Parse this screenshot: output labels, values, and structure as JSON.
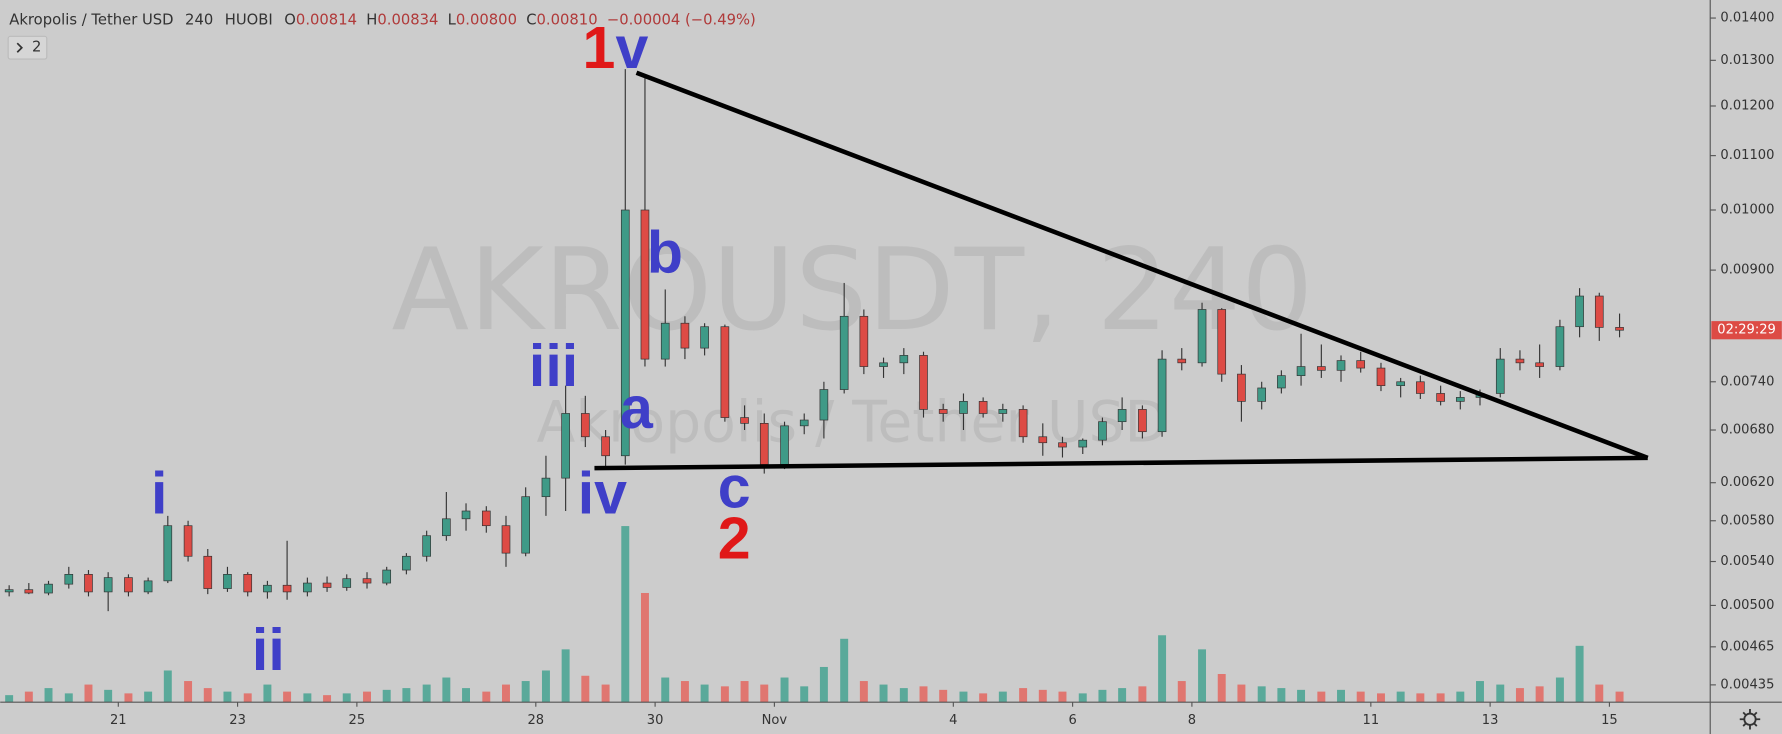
{
  "header": {
    "title": "Akropolis / Tether USD",
    "interval": "240",
    "exchange": "HUOBI",
    "ohlc": [
      {
        "label": "O",
        "value": "0.00814"
      },
      {
        "label": "H",
        "value": "0.00834"
      },
      {
        "label": "L",
        "value": "0.00800"
      },
      {
        "label": "C",
        "value": "0.00810"
      }
    ],
    "change": "−0.00004 (−0.49%)",
    "indicators": "2"
  },
  "watermark": {
    "symbol": "AKROUSDT, 240",
    "name": "Akropolis / Tether USD"
  },
  "countdown": "02:29:29",
  "annotations": [
    "1",
    "v",
    "b",
    "iii",
    "a",
    "iv",
    "c",
    "2",
    "i",
    "ii"
  ],
  "chart_data": {
    "type": "candlestick",
    "y_scale": "log",
    "grid": false,
    "up_color": "#3f9a87",
    "down_color": "#dd4b45",
    "up_volume_color": "#5aa99a",
    "down_volume_color": "#e07670",
    "xlim": [
      19.02,
      47.69
    ],
    "ylim": [
      0.00422,
      0.01445
    ],
    "xticks": [
      21,
      23,
      25,
      28,
      30,
      {
        "value": 32,
        "label": "Nov"
      },
      {
        "value": 35,
        "label": "4"
      },
      {
        "value": 37,
        "label": "6"
      },
      {
        "value": 39,
        "label": "8"
      },
      {
        "value": 42,
        "label": "11"
      },
      {
        "value": 44,
        "label": "13"
      },
      {
        "value": 46,
        "label": "15"
      }
    ],
    "yticks": [
      {
        "value": 0.014,
        "label": "0.01400"
      },
      {
        "value": 0.013,
        "label": "0.01300"
      },
      {
        "value": 0.012,
        "label": "0.01200"
      },
      {
        "value": 0.011,
        "label": "0.01100"
      },
      {
        "value": 0.01,
        "label": "0.01000"
      },
      {
        "value": 0.009,
        "label": "0.00900"
      },
      {
        "value": 0.0074,
        "label": "0.00740"
      },
      {
        "value": 0.0068,
        "label": "0.00680"
      },
      {
        "value": 0.0062,
        "label": "0.00620"
      },
      {
        "value": 0.0058,
        "label": "0.00580"
      },
      {
        "value": 0.0054,
        "label": "0.00540"
      },
      {
        "value": 0.005,
        "label": "0.00500"
      },
      {
        "value": 0.00465,
        "label": "0.00465"
      },
      {
        "value": 0.00435,
        "label": "0.00435"
      }
    ],
    "x": [
      19.17,
      19.5,
      19.83,
      20.17,
      20.5,
      20.83,
      21.17,
      21.5,
      21.83,
      22.17,
      22.5,
      22.83,
      23.17,
      23.5,
      23.83,
      24.17,
      24.5,
      24.83,
      25.17,
      25.5,
      25.83,
      26.17,
      26.5,
      26.83,
      27.17,
      27.5,
      27.83,
      28.17,
      28.5,
      28.83,
      29.17,
      29.5,
      29.83,
      30.17,
      30.5,
      30.83,
      31.17,
      31.5,
      31.83,
      32.17,
      32.5,
      32.83,
      33.17,
      33.5,
      33.83,
      34.17,
      34.5,
      34.83,
      35.17,
      35.5,
      35.83,
      36.17,
      36.5,
      36.83,
      37.17,
      37.5,
      37.83,
      38.17,
      38.5,
      38.83,
      39.17,
      39.5,
      39.83,
      40.17,
      40.5,
      40.83,
      41.17,
      41.5,
      41.83,
      42.17,
      42.5,
      42.83,
      43.17,
      43.5,
      43.83,
      44.17,
      44.5,
      44.83,
      45.17,
      45.5,
      45.83,
      46.17
    ],
    "open": [
      0.00512,
      0.00514,
      0.00511,
      0.00519,
      0.00528,
      0.00512,
      0.00525,
      0.00512,
      0.00522,
      0.00575,
      0.00545,
      0.00515,
      0.00528,
      0.00512,
      0.00518,
      0.00512,
      0.0052,
      0.00516,
      0.00524,
      0.0052,
      0.00532,
      0.00545,
      0.00565,
      0.00582,
      0.0059,
      0.00575,
      0.00548,
      0.00605,
      0.00625,
      0.007,
      0.00672,
      0.0065,
      0.01,
      0.0077,
      0.0082,
      0.00785,
      0.00815,
      0.00695,
      0.00688,
      0.0064,
      0.00685,
      0.00692,
      0.0073,
      0.0083,
      0.0076,
      0.00765,
      0.00775,
      0.00705,
      0.007,
      0.00715,
      0.007,
      0.00705,
      0.00672,
      0.00665,
      0.0066,
      0.00668,
      0.0069,
      0.00705,
      0.00678,
      0.0077,
      0.00765,
      0.0084,
      0.0075,
      0.00715,
      0.00732,
      0.00748,
      0.0076,
      0.00755,
      0.00768,
      0.00758,
      0.00735,
      0.0074,
      0.00725,
      0.00715,
      0.0072,
      0.00725,
      0.0077,
      0.00765,
      0.0076,
      0.00815,
      0.0086,
      0.00814
    ],
    "high": [
      0.00518,
      0.0052,
      0.00522,
      0.00535,
      0.00532,
      0.0053,
      0.00528,
      0.00525,
      0.00585,
      0.0058,
      0.00552,
      0.00535,
      0.0053,
      0.00522,
      0.0056,
      0.00525,
      0.00526,
      0.00528,
      0.0053,
      0.00535,
      0.00548,
      0.0057,
      0.0061,
      0.00598,
      0.00595,
      0.00585,
      0.00615,
      0.0065,
      0.00735,
      0.00722,
      0.0068,
      0.0128,
      0.0126,
      0.0087,
      0.0083,
      0.0082,
      0.00818,
      0.0071,
      0.007,
      0.0069,
      0.007,
      0.0074,
      0.0088,
      0.0084,
      0.00772,
      0.00785,
      0.0078,
      0.00712,
      0.00725,
      0.0072,
      0.00712,
      0.0071,
      0.00688,
      0.00672,
      0.0067,
      0.00695,
      0.0072,
      0.0071,
      0.00782,
      0.00785,
      0.0085,
      0.00842,
      0.00762,
      0.0074,
      0.00755,
      0.00805,
      0.0079,
      0.00775,
      0.0078,
      0.00765,
      0.00745,
      0.00748,
      0.00735,
      0.00728,
      0.0073,
      0.00785,
      0.00782,
      0.0079,
      0.00825,
      0.00872,
      0.00865,
      0.00834
    ],
    "low": [
      0.00508,
      0.0051,
      0.00509,
      0.00515,
      0.00508,
      0.00495,
      0.00508,
      0.0051,
      0.0052,
      0.0054,
      0.0051,
      0.00512,
      0.00508,
      0.00506,
      0.00505,
      0.00508,
      0.00512,
      0.00513,
      0.00515,
      0.00518,
      0.00528,
      0.0054,
      0.0056,
      0.0057,
      0.00568,
      0.00535,
      0.00545,
      0.00585,
      0.0059,
      0.0066,
      0.00635,
      0.0064,
      0.0076,
      0.0076,
      0.0077,
      0.00775,
      0.0069,
      0.0068,
      0.0063,
      0.00635,
      0.00675,
      0.0067,
      0.00725,
      0.0075,
      0.00745,
      0.0075,
      0.00695,
      0.0069,
      0.0068,
      0.00695,
      0.0069,
      0.00665,
      0.0065,
      0.00648,
      0.00652,
      0.00662,
      0.0068,
      0.0067,
      0.00672,
      0.00755,
      0.0076,
      0.0074,
      0.0069,
      0.00705,
      0.00725,
      0.00735,
      0.00745,
      0.0074,
      0.00752,
      0.00728,
      0.0072,
      0.00718,
      0.0071,
      0.00705,
      0.0071,
      0.0072,
      0.00755,
      0.00745,
      0.00755,
      0.008,
      0.00795,
      0.008
    ],
    "close": [
      0.00514,
      0.00511,
      0.00519,
      0.00528,
      0.00512,
      0.00525,
      0.00512,
      0.00522,
      0.00575,
      0.00545,
      0.00515,
      0.00528,
      0.00512,
      0.00518,
      0.00512,
      0.0052,
      0.00516,
      0.00524,
      0.0052,
      0.00532,
      0.00545,
      0.00565,
      0.00582,
      0.0059,
      0.00575,
      0.00548,
      0.00605,
      0.00625,
      0.007,
      0.00672,
      0.0065,
      0.01,
      0.0077,
      0.0082,
      0.00785,
      0.00815,
      0.00695,
      0.00688,
      0.0064,
      0.00685,
      0.00692,
      0.0073,
      0.0083,
      0.0076,
      0.00765,
      0.00775,
      0.00705,
      0.007,
      0.00715,
      0.007,
      0.00705,
      0.00672,
      0.00665,
      0.0066,
      0.00668,
      0.0069,
      0.00705,
      0.00678,
      0.0077,
      0.00765,
      0.0084,
      0.0075,
      0.00715,
      0.00732,
      0.00748,
      0.0076,
      0.00755,
      0.00768,
      0.00758,
      0.00735,
      0.0074,
      0.00725,
      0.00715,
      0.0072,
      0.00725,
      0.0077,
      0.00765,
      0.0076,
      0.00815,
      0.0086,
      0.00814,
      0.0081
    ],
    "volume": [
      4,
      6,
      8,
      5,
      10,
      7,
      5,
      6,
      18,
      12,
      8,
      6,
      5,
      10,
      6,
      5,
      4,
      5,
      6,
      7,
      8,
      10,
      14,
      8,
      6,
      10,
      12,
      18,
      30,
      15,
      10,
      100,
      62,
      14,
      12,
      10,
      9,
      12,
      10,
      14,
      9,
      20,
      36,
      12,
      10,
      8,
      9,
      7,
      6,
      5,
      6,
      8,
      7,
      6,
      5,
      7,
      8,
      9,
      38,
      12,
      30,
      16,
      10,
      9,
      8,
      7,
      6,
      7,
      6,
      5,
      6,
      5,
      5,
      6,
      12,
      10,
      8,
      9,
      14,
      32,
      10,
      6
    ]
  }
}
